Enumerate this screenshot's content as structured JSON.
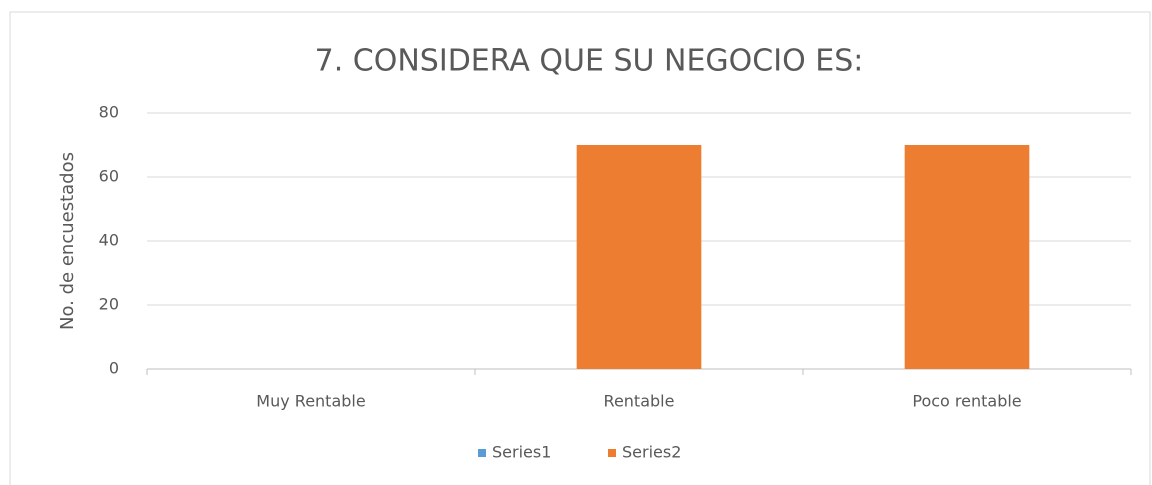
{
  "chart_data": {
    "type": "bar",
    "title": "7. CONSIDERA QUE SU NEGOCIO ES:",
    "ylabel": "No. de encuestados",
    "categories": [
      "Muy Rentable",
      "Rentable",
      "Poco rentable"
    ],
    "series": [
      {
        "name": "Series1",
        "color": "#5b9bd5",
        "values": [
          0,
          0,
          0
        ]
      },
      {
        "name": "Series2",
        "color": "#ed7d31",
        "values": [
          0,
          70,
          70
        ]
      }
    ],
    "ylim": [
      0,
      80
    ],
    "yticks": [
      0,
      20,
      40,
      60,
      80
    ],
    "grid": true,
    "legend": "bottom"
  }
}
